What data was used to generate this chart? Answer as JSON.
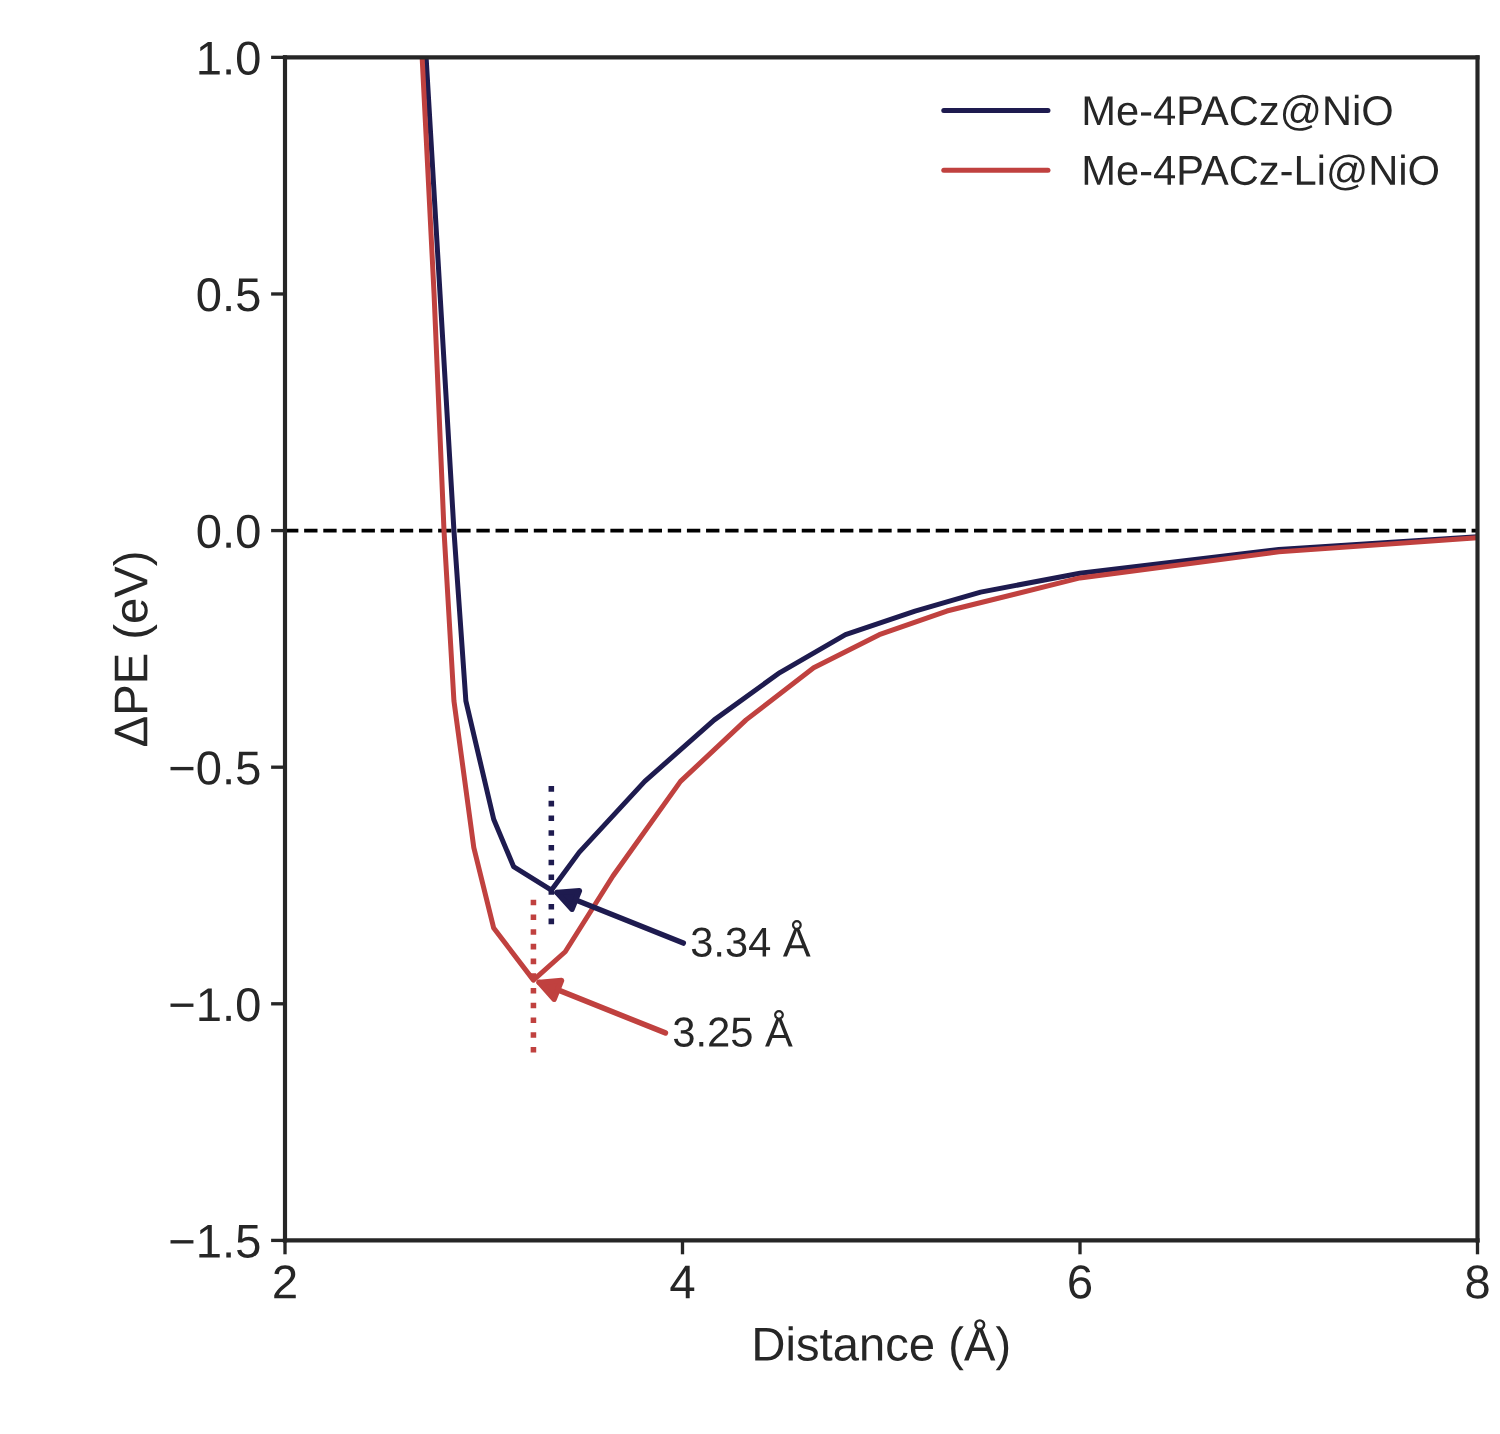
{
  "chart_data": {
    "type": "line",
    "xlabel": "Distance (Å)",
    "ylabel": "ΔPE (eV)",
    "series": [
      {
        "name": "Me-4PACz@NiO",
        "color": "#1e1b4f",
        "x": [
          2.71,
          2.78,
          2.85,
          2.91,
          3.05,
          3.15,
          3.34,
          3.48,
          3.81,
          4.16,
          4.49,
          4.82,
          5.17,
          5.5,
          6.0,
          7.0,
          8.0
        ],
        "values": [
          1.0,
          0.5,
          0.0,
          -0.36,
          -0.61,
          -0.71,
          -0.76,
          -0.68,
          -0.53,
          -0.4,
          -0.3,
          -0.22,
          -0.17,
          -0.13,
          -0.09,
          -0.04,
          -0.013
        ]
      },
      {
        "name": "Me-4PACz-Li@NiO",
        "color": "#c0413f",
        "x": [
          2.69,
          2.75,
          2.8,
          2.85,
          2.95,
          3.05,
          3.25,
          3.41,
          3.65,
          3.99,
          4.32,
          4.66,
          4.99,
          5.33,
          6.0,
          7.0,
          8.0
        ],
        "values": [
          1.0,
          0.5,
          0.0,
          -0.36,
          -0.67,
          -0.84,
          -0.95,
          -0.89,
          -0.73,
          -0.53,
          -0.4,
          -0.29,
          -0.22,
          -0.17,
          -0.1,
          -0.045,
          -0.015
        ]
      }
    ],
    "xlim": [
      2,
      8
    ],
    "xticks": [
      2,
      4,
      6,
      8
    ],
    "ylim": [
      -1.5,
      1.0
    ],
    "yticks": [
      {
        "value": -1.5,
        "label": "−1.5"
      },
      {
        "value": -1.0,
        "label": "−1.0"
      },
      {
        "value": -0.5,
        "label": "−0.5"
      },
      {
        "value": 0.0,
        "label": "0.0"
      },
      {
        "value": 0.5,
        "label": "0.5"
      },
      {
        "value": 1.0,
        "label": "1.0"
      }
    ],
    "ref_lines": [
      {
        "axis": "y",
        "value": 0.0,
        "label": null,
        "color": "#000000",
        "line_style": "dashed"
      }
    ],
    "annotations": [
      {
        "text": "3.34 Å",
        "x": 3.34,
        "y": -0.76
      },
      {
        "text": "3.25 Å",
        "x": 3.25,
        "y": -0.95
      }
    ],
    "legend": "top right",
    "grid": false
  }
}
